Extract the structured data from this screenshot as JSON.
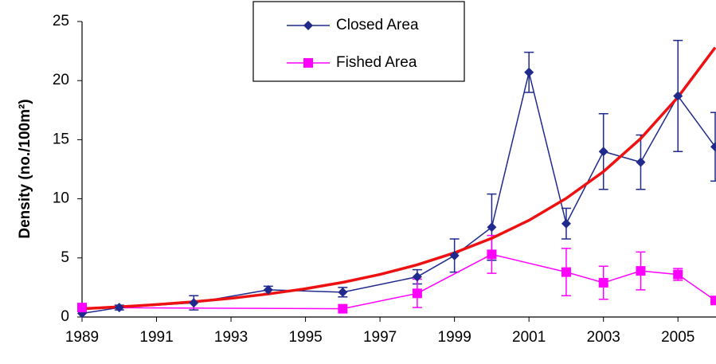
{
  "chart_data": {
    "type": "line",
    "y_label": "Density (no./100m²)",
    "xlim": [
      1989,
      2006
    ],
    "ylim": [
      0,
      25
    ],
    "xticks": [
      1989,
      1991,
      1993,
      1995,
      1997,
      1999,
      2001,
      2003,
      2005
    ],
    "yticks": [
      0,
      5,
      10,
      15,
      20,
      25
    ],
    "legend": "top-center",
    "series": [
      {
        "name": "Closed Area",
        "color": "#1f2a8c",
        "marker": "diamond",
        "x": [
          1989,
          1990,
          1992,
          1994,
          1996,
          1998,
          1999,
          2000,
          2001,
          2002,
          2003,
          2004,
          2005,
          2006
        ],
        "values": [
          0.3,
          0.8,
          1.2,
          2.3,
          2.1,
          3.4,
          5.2,
          7.6,
          20.7,
          7.9,
          14.0,
          13.1,
          18.7,
          14.4
        ],
        "errors": [
          null,
          0.2,
          0.6,
          0.3,
          0.4,
          0.6,
          1.4,
          2.8,
          1.7,
          1.3,
          3.2,
          2.3,
          4.7,
          2.9
        ]
      },
      {
        "name": "Fished Area",
        "color": "#ff00ff",
        "marker": "square",
        "x": [
          1989,
          1996,
          1998,
          2000,
          2002,
          2003,
          2004,
          2005,
          2006
        ],
        "values": [
          0.8,
          0.7,
          2.0,
          5.3,
          3.8,
          2.9,
          3.9,
          3.6,
          1.4
        ],
        "errors": [
          null,
          null,
          1.2,
          1.6,
          2.0,
          1.4,
          1.6,
          0.5,
          null
        ]
      }
    ],
    "trend": {
      "color": "#ee1111",
      "x": [
        1989,
        1990,
        1991,
        1992,
        1993,
        1994,
        1995,
        1996,
        1997,
        1998,
        1999,
        2000,
        2001,
        2002,
        2003,
        2004,
        2005,
        2006
      ],
      "values": [
        0.7,
        0.86,
        1.05,
        1.29,
        1.58,
        1.95,
        2.39,
        2.93,
        3.6,
        4.42,
        5.43,
        6.66,
        8.18,
        10.04,
        12.3,
        15.1,
        18.6,
        22.8
      ]
    }
  }
}
